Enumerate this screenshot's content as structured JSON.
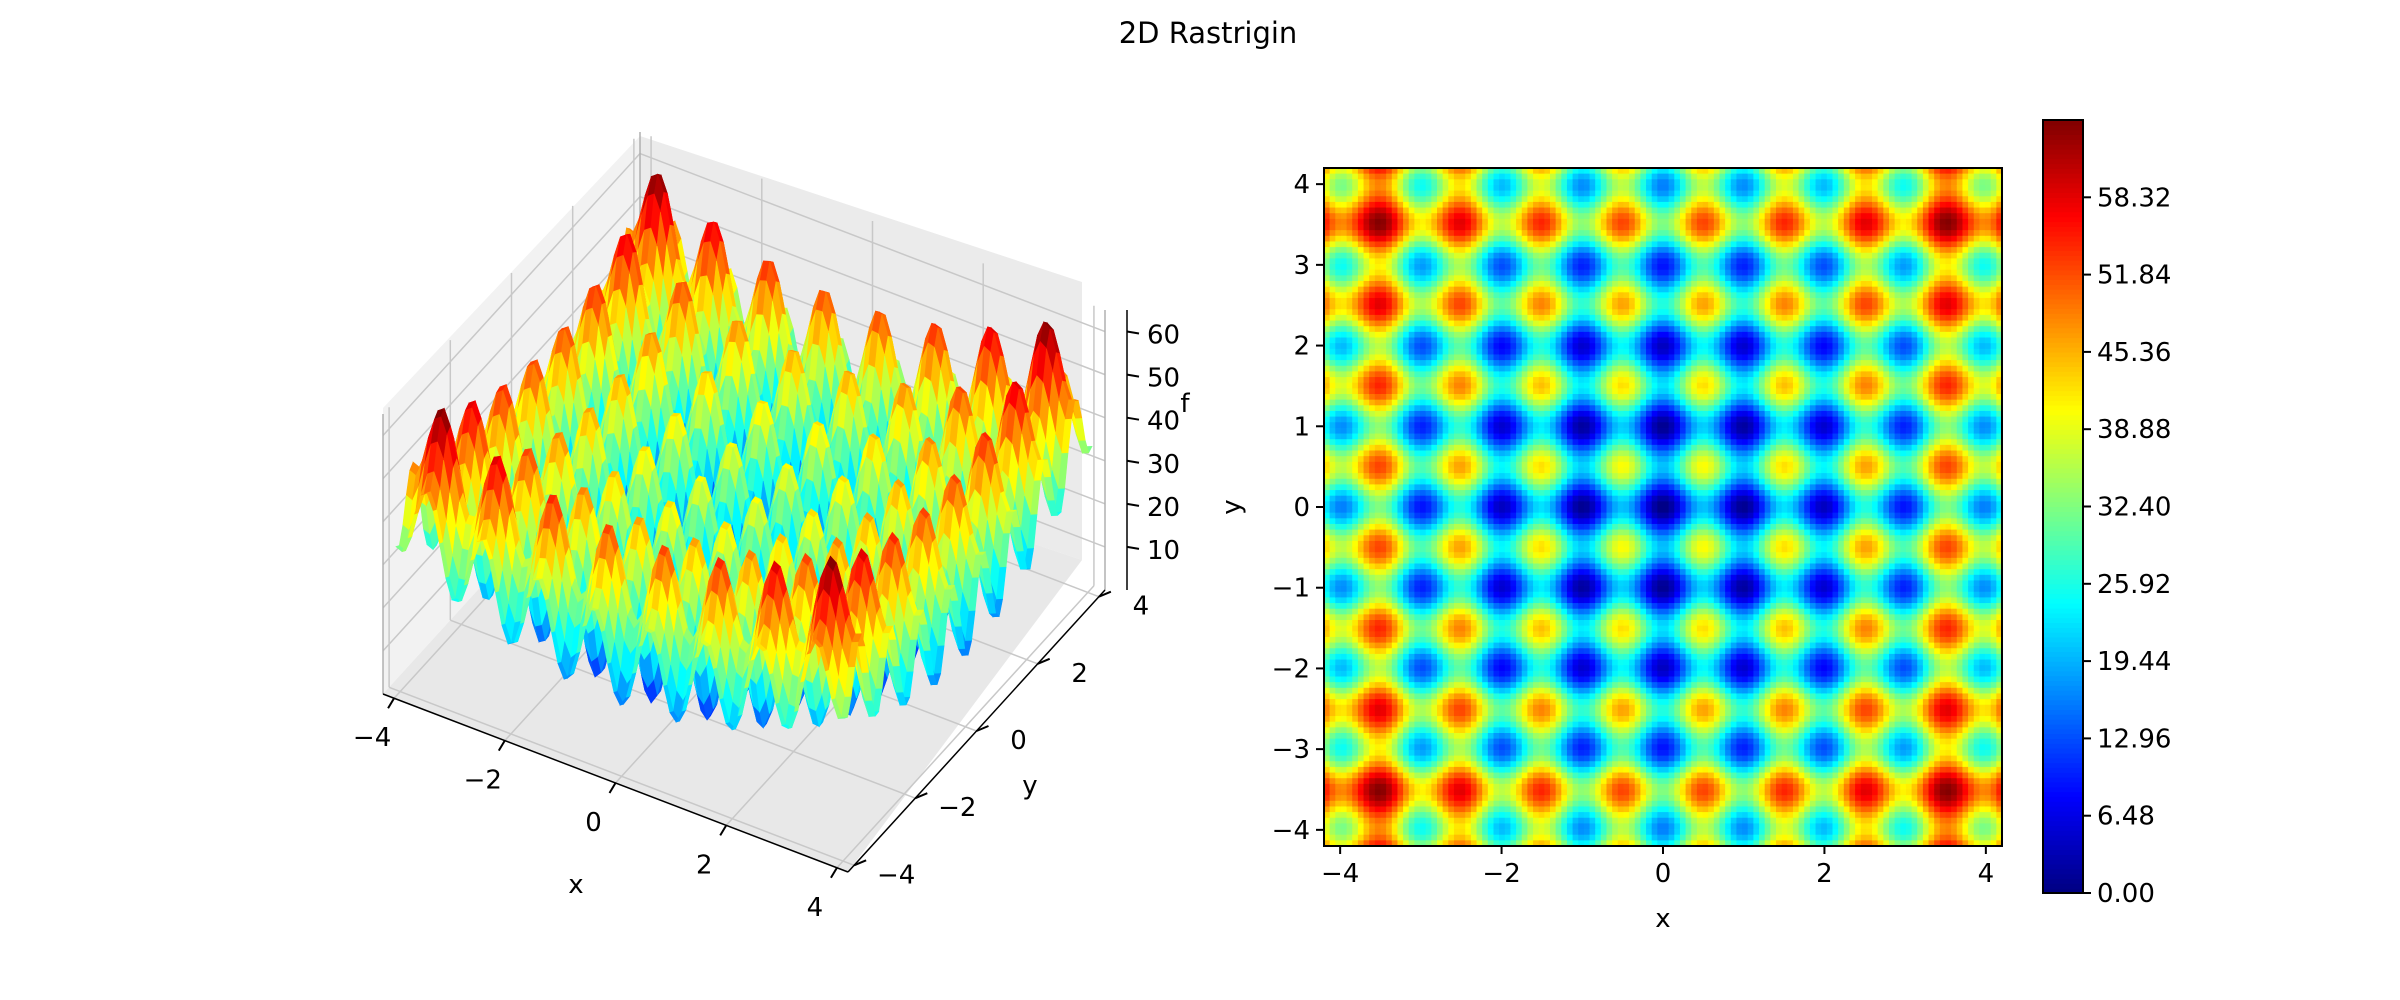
{
  "figure": {
    "title": "2D Rastrigin"
  },
  "chart_data": [
    {
      "type": "surface",
      "function": "f(x, y) = 20 + x^2 - 10 cos(2 pi x) + y^2 - 10 cos(2 pi y)",
      "xlabel": "x",
      "ylabel": "y",
      "zlabel": "f",
      "xlim": [
        -4.2,
        4.2
      ],
      "ylim": [
        -4.2,
        4.2
      ],
      "zlim": [
        0,
        65
      ],
      "xticks": [
        -4,
        -2,
        0,
        2,
        4
      ],
      "yticks": [
        -4,
        -2,
        0,
        2,
        4
      ],
      "zticks": [
        10,
        20,
        30,
        40,
        50,
        60
      ],
      "xtick_labels": [
        "−4",
        "−2",
        "0",
        "2",
        "4"
      ],
      "ytick_labels": [
        "−4",
        "−2",
        "0",
        "2",
        "4"
      ],
      "ztick_labels": [
        "10",
        "20",
        "30",
        "40",
        "50",
        "60"
      ],
      "colormap": "jet",
      "grid": true
    },
    {
      "type": "heatmap",
      "function": "f(x, y) = 20 + x^2 - 10 cos(2 pi x) + y^2 - 10 cos(2 pi y)",
      "xlabel": "x",
      "ylabel": "y",
      "xlim": [
        -4.2,
        4.2
      ],
      "ylim": [
        -4.2,
        4.2
      ],
      "xticks": [
        -4,
        -2,
        0,
        2,
        4
      ],
      "yticks": [
        -4,
        -3,
        -2,
        -1,
        0,
        1,
        2,
        3,
        4
      ],
      "xtick_labels": [
        "−4",
        "−2",
        "0",
        "2",
        "4"
      ],
      "ytick_labels": [
        "−4",
        "−3",
        "−2",
        "−1",
        "0",
        "1",
        "2",
        "3",
        "4"
      ],
      "colormap": "jet",
      "colorbar": {
        "range": [
          0,
          64.8
        ],
        "ticks": [
          0,
          6.48,
          12.96,
          19.44,
          25.92,
          32.4,
          38.88,
          45.36,
          51.84,
          58.32
        ],
        "tick_labels": [
          "0.00",
          "6.48",
          "12.96",
          "19.44",
          "25.92",
          "32.40",
          "38.88",
          "45.36",
          "51.84",
          "58.32"
        ]
      }
    }
  ]
}
